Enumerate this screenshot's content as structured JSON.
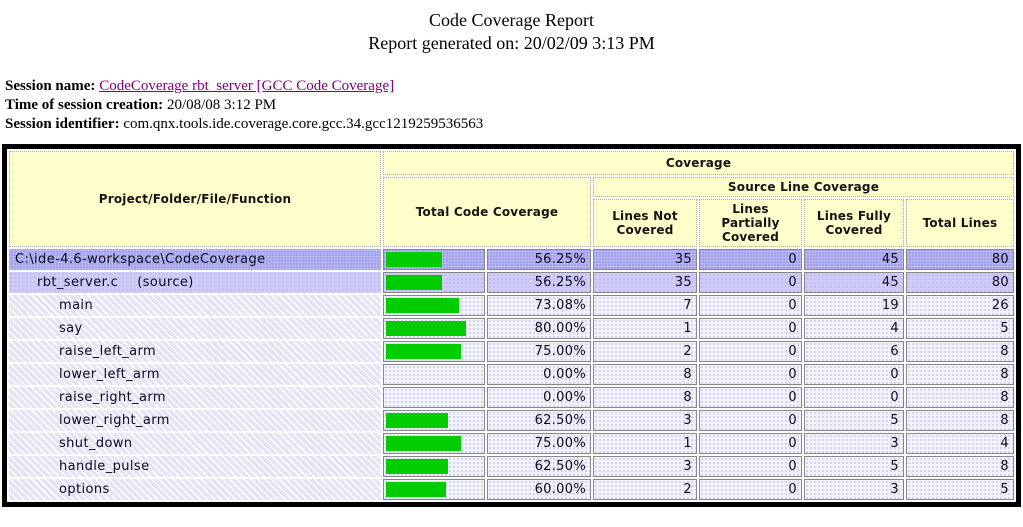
{
  "page": {
    "title": "Code Coverage Report",
    "subtitle": "Report generated on: 20/02/09 3:13 PM"
  },
  "session": {
    "name_label": "Session name:",
    "name_link": "CodeCoverage rbt_server [GCC Code Coverage]",
    "time_label": "Time of session creation:",
    "time_value": "20/08/08 3:12 PM",
    "id_label": "Session identifier:",
    "id_value": "com.qnx.tools.ide.coverage.core.gcc.34.gcc1219259536563"
  },
  "table": {
    "headers": {
      "name": "Project/Folder/File/Function",
      "coverage_group": "Coverage",
      "total_code_coverage": "Total Code Coverage",
      "source_line_group": "Source Line Coverage",
      "lines_not_covered": "Lines Not Covered",
      "lines_partially_covered": "Lines Partially Covered",
      "lines_fully_covered": "Lines Fully Covered",
      "total_lines": "Total Lines"
    },
    "colors": {
      "bar": "#00cc00",
      "header_bg": "#ffffcc",
      "project_row": "#a2a2ec",
      "file_row": "#cdcdf7",
      "function_row": "#e4e4f6"
    },
    "rows": [
      {
        "name": "C:\\ide-4.6-workspace\\CodeCoverage",
        "note": "",
        "kind": "project",
        "level": 0,
        "percent": 56.25,
        "percent_label": "56.25%",
        "not_covered": "35",
        "partially_covered": "0",
        "fully_covered": "45",
        "total_lines": "80"
      },
      {
        "name": "rbt_server.c",
        "note": "(source)",
        "kind": "file",
        "level": 1,
        "percent": 56.25,
        "percent_label": "56.25%",
        "not_covered": "35",
        "partially_covered": "0",
        "fully_covered": "45",
        "total_lines": "80"
      },
      {
        "name": "main",
        "note": "",
        "kind": "function",
        "level": 2,
        "percent": 73.08,
        "percent_label": "73.08%",
        "not_covered": "7",
        "partially_covered": "0",
        "fully_covered": "19",
        "total_lines": "26"
      },
      {
        "name": "say",
        "note": "",
        "kind": "function",
        "level": 2,
        "percent": 80.0,
        "percent_label": "80.00%",
        "not_covered": "1",
        "partially_covered": "0",
        "fully_covered": "4",
        "total_lines": "5"
      },
      {
        "name": "raise_left_arm",
        "note": "",
        "kind": "function",
        "level": 2,
        "percent": 75.0,
        "percent_label": "75.00%",
        "not_covered": "2",
        "partially_covered": "0",
        "fully_covered": "6",
        "total_lines": "8"
      },
      {
        "name": "lower_left_arm",
        "note": "",
        "kind": "function",
        "level": 2,
        "percent": 0.0,
        "percent_label": "0.00%",
        "not_covered": "8",
        "partially_covered": "0",
        "fully_covered": "0",
        "total_lines": "8"
      },
      {
        "name": "raise_right_arm",
        "note": "",
        "kind": "function",
        "level": 2,
        "percent": 0.0,
        "percent_label": "0.00%",
        "not_covered": "8",
        "partially_covered": "0",
        "fully_covered": "0",
        "total_lines": "8"
      },
      {
        "name": "lower_right_arm",
        "note": "",
        "kind": "function",
        "level": 2,
        "percent": 62.5,
        "percent_label": "62.50%",
        "not_covered": "3",
        "partially_covered": "0",
        "fully_covered": "5",
        "total_lines": "8"
      },
      {
        "name": "shut_down",
        "note": "",
        "kind": "function",
        "level": 2,
        "percent": 75.0,
        "percent_label": "75.00%",
        "not_covered": "1",
        "partially_covered": "0",
        "fully_covered": "3",
        "total_lines": "4"
      },
      {
        "name": "handle_pulse",
        "note": "",
        "kind": "function",
        "level": 2,
        "percent": 62.5,
        "percent_label": "62.50%",
        "not_covered": "3",
        "partially_covered": "0",
        "fully_covered": "5",
        "total_lines": "8"
      },
      {
        "name": "options",
        "note": "",
        "kind": "function",
        "level": 2,
        "percent": 60.0,
        "percent_label": "60.00%",
        "not_covered": "2",
        "partially_covered": "0",
        "fully_covered": "3",
        "total_lines": "5"
      }
    ]
  }
}
